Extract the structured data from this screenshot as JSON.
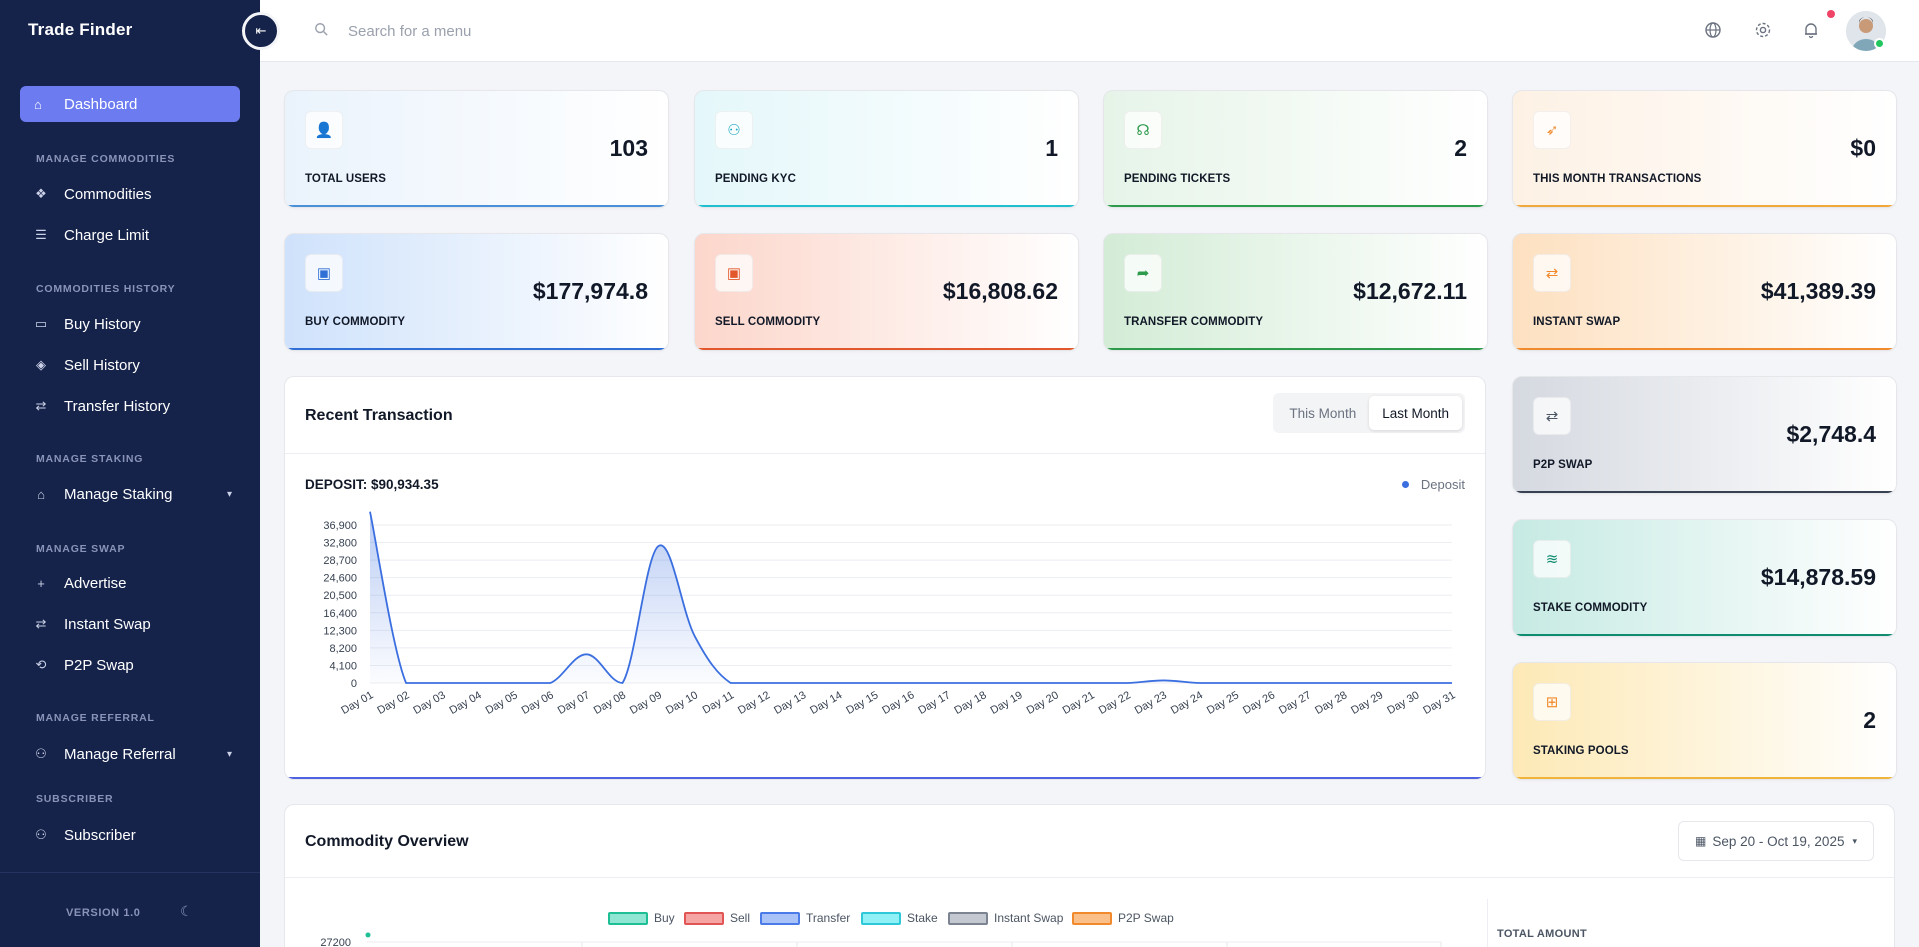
{
  "brand": {
    "name": "Trade Finder"
  },
  "sidebar": {
    "active": {
      "label": "Dashboard"
    },
    "sections": {
      "manage_commodities": "MANAGE COMMODITIES",
      "commodities_history": "COMMODITIES HISTORY",
      "manage_staking": "MANAGE STAKING",
      "manage_swap": "MANAGE SWAP",
      "manage_referral": "MANAGE REFERRAL",
      "subscriber": "SUBSCRIBER"
    },
    "items": {
      "commodities": "Commodities",
      "charge_limit": "Charge Limit",
      "buy_history": "Buy History",
      "sell_history": "Sell History",
      "transfer_history": "Transfer History",
      "manage_staking": "Manage Staking",
      "advertise": "Advertise",
      "instant_swap": "Instant Swap",
      "p2p_swap": "P2P Swap",
      "manage_referral": "Manage Referral",
      "subscriber": "Subscriber"
    },
    "version": "VERSION 1.0"
  },
  "topbar": {
    "search_placeholder": "Search for a menu"
  },
  "stats": {
    "total_users": {
      "label": "TOTAL USERS",
      "value": "103"
    },
    "pending_kyc": {
      "label": "PENDING KYC",
      "value": "1"
    },
    "pending_tickets": {
      "label": "PENDING TICKETS",
      "value": "2"
    },
    "month_transactions": {
      "label": "THIS MONTH TRANSACTIONS",
      "value": "$0"
    },
    "buy_commodity": {
      "label": "BUY COMMODITY",
      "value": "$177,974.8"
    },
    "sell_commodity": {
      "label": "SELL COMMODITY",
      "value": "$16,808.62"
    },
    "transfer_commodity": {
      "label": "TRANSFER COMMODITY",
      "value": "$12,672.11"
    },
    "instant_swap": {
      "label": "INSTANT SWAP",
      "value": "$41,389.39"
    },
    "p2p_swap": {
      "label": "P2P SWAP",
      "value": "$2,748.4"
    },
    "stake_commodity": {
      "label": "STAKE COMMODITY",
      "value": "$14,878.59"
    },
    "staking_pools": {
      "label": "STAKING POOLS",
      "value": "2"
    }
  },
  "recent_transaction": {
    "title": "Recent Transaction",
    "tabs": [
      "This Month",
      "Last Month"
    ],
    "selected_tab": "Last Month",
    "deposit_total": "DEPOSIT: $90,934.35"
  },
  "commodity_overview": {
    "title": "Commodity Overview",
    "date_range": "Sep 20 - Oct 19, 2025",
    "total_amount_label": "TOTAL AMOUNT",
    "legend": [
      {
        "name": "Buy",
        "fill": "#8fe6d2",
        "stroke": "#1fbf95"
      },
      {
        "name": "Sell",
        "fill": "#f6a5a5",
        "stroke": "#e25555"
      },
      {
        "name": "Transfer",
        "fill": "#a9c2f8",
        "stroke": "#4a7be8"
      },
      {
        "name": "Stake",
        "fill": "#8ff0f6",
        "stroke": "#2ec8d8"
      },
      {
        "name": "Instant Swap",
        "fill": "#c4c9d1",
        "stroke": "#7c8491"
      },
      {
        "name": "P2P Swap",
        "fill": "#fbc08a",
        "stroke": "#f08a2c"
      }
    ],
    "y_top_tick": "27200"
  },
  "chart_data": {
    "type": "area",
    "title": "",
    "xlabel": "",
    "ylabel": "",
    "x": [
      "Day 01",
      "Day 02",
      "Day 03",
      "Day 04",
      "Day 05",
      "Day 06",
      "Day 07",
      "Day 08",
      "Day 09",
      "Day 10",
      "Day 11",
      "Day 12",
      "Day 13",
      "Day 14",
      "Day 15",
      "Day 16",
      "Day 17",
      "Day 18",
      "Day 19",
      "Day 20",
      "Day 21",
      "Day 22",
      "Day 23",
      "Day 24",
      "Day 25",
      "Day 26",
      "Day 27",
      "Day 28",
      "Day 29",
      "Day 30",
      "Day 31"
    ],
    "y_ticks": [
      "0",
      "4,100",
      "8,200",
      "12,300",
      "16,400",
      "20,500",
      "24,600",
      "28,700",
      "32,800",
      "36,900"
    ],
    "ylim": [
      0,
      36900
    ],
    "grid": true,
    "legend": "top-right",
    "series": [
      {
        "name": "Deposit",
        "color": "#3b6fe0",
        "values": [
          40000,
          0,
          0,
          0,
          0,
          0,
          6700,
          0,
          32000,
          11000,
          0,
          0,
          0,
          0,
          0,
          0,
          0,
          0,
          0,
          0,
          0,
          0,
          600,
          0,
          0,
          0,
          0,
          0,
          0,
          0,
          0
        ]
      }
    ]
  },
  "colors": {
    "accent": "#6c7cf0",
    "sidebar": "#15224a",
    "deposit": "#3b6fe0"
  }
}
